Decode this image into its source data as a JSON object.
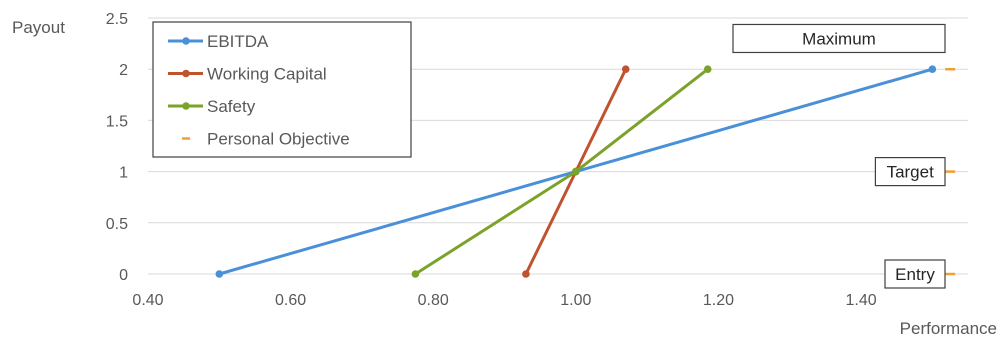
{
  "chart_data": {
    "type": "line",
    "title": "",
    "xlabel": "Performance",
    "ylabel": "Payout",
    "xlim": [
      0.4,
      1.55
    ],
    "ylim": [
      0,
      2.5
    ],
    "x_ticks": [
      "0.40",
      "0.60",
      "0.80",
      "1.00",
      "1.20",
      "1.40"
    ],
    "y_ticks": [
      "0",
      "0.5",
      "1",
      "1.5",
      "2",
      "2.5"
    ],
    "grid": true,
    "legend_position": "top-left",
    "series": [
      {
        "name": "EBITDA",
        "color": "#4a90d9",
        "marker": "circle",
        "points": [
          [
            0.5,
            0
          ],
          [
            1.0,
            1
          ],
          [
            1.5,
            2
          ]
        ]
      },
      {
        "name": "Working Capital",
        "color": "#c0532f",
        "marker": "circle",
        "points": [
          [
            0.93,
            0
          ],
          [
            1.0,
            1
          ],
          [
            1.07,
            2
          ]
        ]
      },
      {
        "name": "Safety",
        "color": "#7ba22a",
        "marker": "circle",
        "points": [
          [
            0.775,
            0
          ],
          [
            1.0,
            1
          ],
          [
            1.185,
            2
          ]
        ]
      },
      {
        "name": "Personal Objective",
        "color": "#f0a030",
        "marker": "dash",
        "points": [
          [
            1.525,
            0
          ],
          [
            1.525,
            1
          ],
          [
            1.525,
            2
          ]
        ]
      }
    ],
    "annotations": [
      {
        "text": "Maximum",
        "y": 2.3
      },
      {
        "text": "Target",
        "y": 1.0
      },
      {
        "text": "Entry",
        "y": 0.0
      }
    ]
  }
}
